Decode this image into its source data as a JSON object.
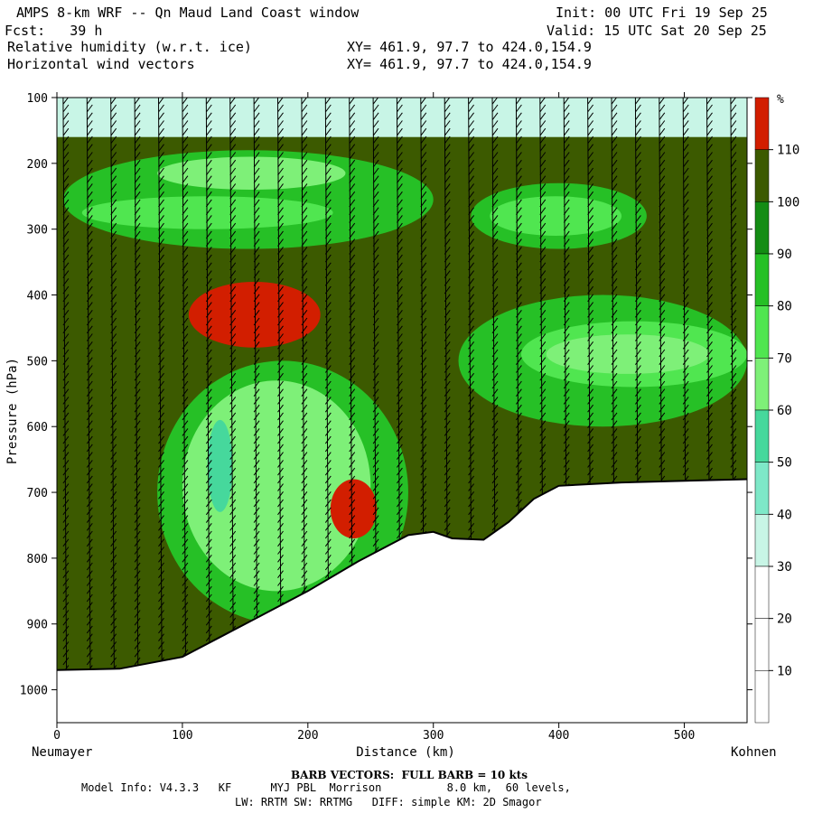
{
  "header": {
    "title": "AMPS 8-km WRF -- Qn Maud Land Coast window",
    "init": "Init: 00 UTC Fri 19 Sep 25",
    "fcst": "Fcst:   39 h",
    "valid": "Valid: 15 UTC Sat 20 Sep 25",
    "field1": "Relative humidity (w.r.t. ice)",
    "field1_xy": "XY= 461.9, 97.7 to 424.0,154.9",
    "field2": "Horizontal wind vectors",
    "field2_xy": "XY= 461.9, 97.7 to 424.0,154.9"
  },
  "footer": {
    "barb_note": "BARB VECTORS:  FULL BARB = 10 kts",
    "model_line1": "Model Info: V4.3.3   KF      MYJ PBL  Morrison          8.0 km,  60 levels,",
    "model_line2": "LW: RRTM SW: RRTMG   DIFF: simple KM: 2D Smagor"
  },
  "colors": {
    "bg": "#ffffff",
    "terrain_line": "#000000"
  },
  "chart_data": {
    "type": "heatmap",
    "title": "Relative humidity (w.r.t. ice)",
    "xlabel": "Distance (km)",
    "ylabel": "Pressure (hPa)",
    "xlim": [
      0,
      550
    ],
    "ylim_pressure": [
      1050,
      100
    ],
    "x_ticks": [
      0,
      100,
      200,
      300,
      400,
      500
    ],
    "y_ticks": [
      100,
      200,
      300,
      400,
      500,
      600,
      700,
      800,
      900,
      1000
    ],
    "x_endpoints": {
      "left": "Neumayer",
      "right": "Kohnen"
    },
    "colorbar": {
      "unit": "%",
      "levels": [
        10,
        20,
        30,
        40,
        50,
        60,
        70,
        80,
        90,
        100,
        110
      ],
      "bins": [
        {
          "from": 0,
          "to": 30,
          "color": "#ffffff"
        },
        {
          "from": 30,
          "to": 40,
          "color": "#c8f5e6"
        },
        {
          "from": 40,
          "to": 50,
          "color": "#7ee8c8"
        },
        {
          "from": 50,
          "to": 60,
          "color": "#46d89c"
        },
        {
          "from": 60,
          "to": 70,
          "color": "#7ef078"
        },
        {
          "from": 70,
          "to": 80,
          "color": "#50e650"
        },
        {
          "from": 80,
          "to": 90,
          "color": "#26c026"
        },
        {
          "from": 90,
          "to": 100,
          "color": "#148c14"
        },
        {
          "from": 100,
          "to": 110,
          "color": "#3c5a00"
        },
        {
          "from": 110,
          "to": 120,
          "color": "#d21e00"
        }
      ]
    },
    "background_rh": 105,
    "features": [
      {
        "kind": "dry band aloft",
        "rh": 35,
        "x": [
          0,
          550
        ],
        "p": [
          100,
          160
        ]
      },
      {
        "kind": "moist-dry layer",
        "rh": 85,
        "x": [
          5,
          300
        ],
        "p": [
          180,
          330
        ]
      },
      {
        "kind": "dry pocket",
        "rh": 75,
        "x": [
          20,
          220
        ],
        "p": [
          250,
          300
        ]
      },
      {
        "kind": "dry pocket",
        "rh": 65,
        "x": [
          80,
          230
        ],
        "p": [
          190,
          240
        ]
      },
      {
        "kind": "dry pocket",
        "rh": 85,
        "x": [
          330,
          470
        ],
        "p": [
          230,
          330
        ]
      },
      {
        "kind": "dry pocket",
        "rh": 72,
        "x": [
          345,
          450
        ],
        "p": [
          250,
          310
        ]
      },
      {
        "kind": "supersaturated",
        "rh": 112,
        "x": [
          105,
          210
        ],
        "p": [
          380,
          480
        ]
      },
      {
        "kind": "dry tongue",
        "rh": 82,
        "x": [
          80,
          280
        ],
        "p": [
          500,
          900
        ]
      },
      {
        "kind": "dry tongue",
        "rh": 68,
        "x": [
          100,
          250
        ],
        "p": [
          530,
          850
        ]
      },
      {
        "kind": "dry pocket",
        "rh": 57,
        "x": [
          120,
          140
        ],
        "p": [
          590,
          730
        ]
      },
      {
        "kind": "supersaturated",
        "rh": 112,
        "x": [
          218,
          255
        ],
        "p": [
          680,
          770
        ]
      },
      {
        "kind": "moist-dry layer",
        "rh": 88,
        "x": [
          320,
          550
        ],
        "p": [
          400,
          600
        ]
      },
      {
        "kind": "dry pocket",
        "rh": 75,
        "x": [
          370,
          550
        ],
        "p": [
          440,
          540
        ]
      },
      {
        "kind": "dry pocket",
        "rh": 68,
        "x": [
          390,
          520
        ],
        "p": [
          460,
          520
        ]
      }
    ],
    "terrain_pressure": [
      [
        0,
        970
      ],
      [
        50,
        968
      ],
      [
        100,
        950
      ],
      [
        150,
        900
      ],
      [
        200,
        850
      ],
      [
        240,
        805
      ],
      [
        280,
        765
      ],
      [
        300,
        760
      ],
      [
        315,
        770
      ],
      [
        340,
        772
      ],
      [
        360,
        745
      ],
      [
        380,
        710
      ],
      [
        400,
        690
      ],
      [
        450,
        685
      ],
      [
        550,
        680
      ]
    ],
    "barb_note": "BARB VECTORS:  FULL BARB = 10 kts"
  }
}
